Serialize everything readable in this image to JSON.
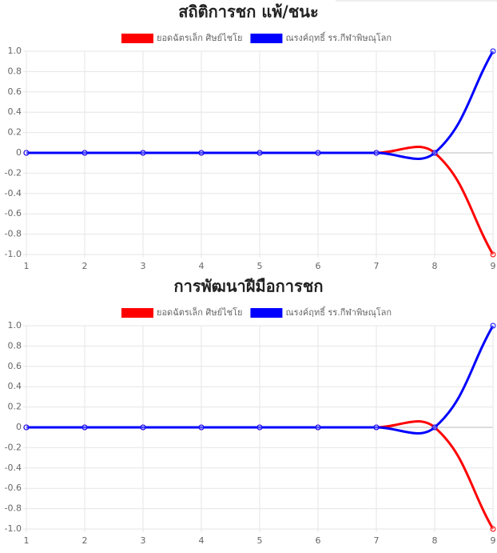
{
  "chart_data": [
    {
      "type": "line",
      "title": "สถิติการชก แพ้/ชนะ",
      "categories": [
        "1",
        "2",
        "3",
        "4",
        "5",
        "6",
        "7",
        "8",
        "9"
      ],
      "series": [
        {
          "name": "ยอดฉัตรเล็ก ศิษย์ไชโย",
          "color": "#ff0000",
          "values": [
            0,
            0,
            0,
            0,
            0,
            0,
            0,
            0,
            -1
          ]
        },
        {
          "name": "ณรงค์ฤทธิ์ รร.กีฬาพิษณุโลก",
          "color": "#0000ff",
          "values": [
            0,
            0,
            0,
            0,
            0,
            0,
            0,
            0,
            1
          ]
        }
      ],
      "ylim": [
        -1,
        1
      ],
      "yticks": [
        {
          "value": -1,
          "label": "-1.0"
        },
        -0.8,
        -0.6,
        -0.4,
        -0.2,
        0,
        0.2,
        0.4,
        0.6,
        0.8,
        {
          "value": 1,
          "label": "1.0"
        }
      ],
      "grid": true
    },
    {
      "type": "line",
      "title": "การพัฒนาฝีมือการชก",
      "categories": [
        "1",
        "2",
        "3",
        "4",
        "5",
        "6",
        "7",
        "8",
        "9"
      ],
      "series": [
        {
          "name": "ยอดฉัตรเล็ก ศิษย์ไชโย",
          "color": "#ff0000",
          "values": [
            0,
            0,
            0,
            0,
            0,
            0,
            0,
            0,
            -1
          ]
        },
        {
          "name": "ณรงค์ฤทธิ์ รร.กีฬาพิษณุโลก",
          "color": "#0000ff",
          "values": [
            0,
            0,
            0,
            0,
            0,
            0,
            0,
            0,
            1
          ]
        }
      ],
      "ylim": [
        -1,
        1
      ],
      "yticks": [
        {
          "value": -1,
          "label": "-1.0"
        },
        -0.8,
        -0.6,
        -0.4,
        -0.2,
        0,
        0.2,
        0.4,
        0.6,
        0.8,
        {
          "value": 1,
          "label": "1.0"
        }
      ],
      "grid": true
    }
  ]
}
